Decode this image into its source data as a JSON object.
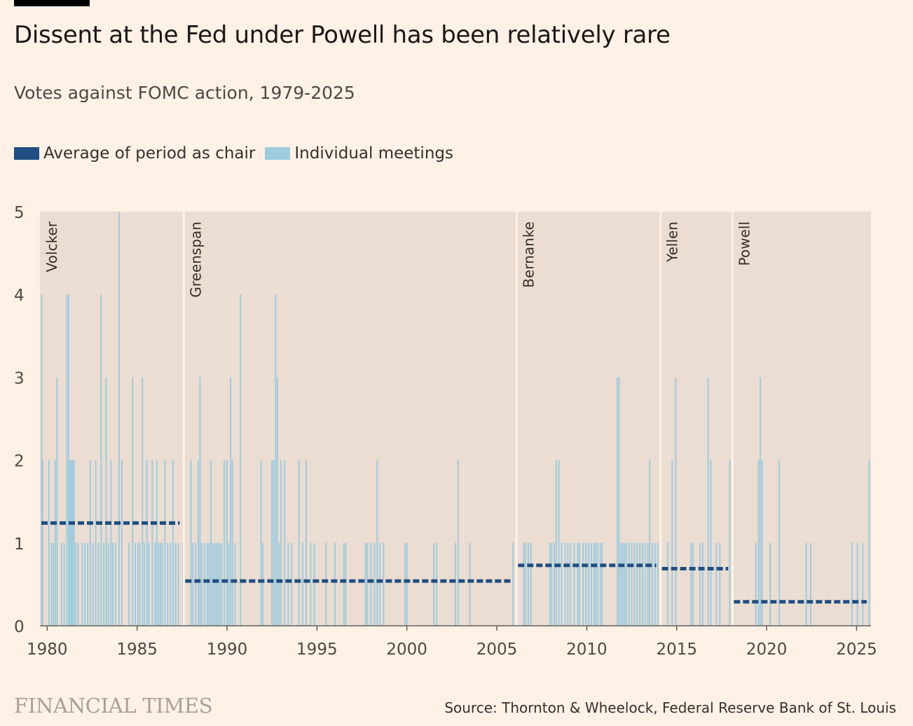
{
  "header": {
    "title": "Dissent at the Fed under Powell has been relatively rare",
    "subtitle": "Votes against FOMC action, 1979-2025"
  },
  "legend": {
    "average_label": "Average of period as chair",
    "meetings_label": "Individual meetings"
  },
  "footer": {
    "logo": "FINANCIAL TIMES",
    "source": "Source: Thornton & Wheelock, Federal Reserve Bank of St. Louis"
  },
  "colors": {
    "background": "#fff1e5",
    "panel": "#ebddd1",
    "average": "#1f4e82",
    "meetings": "#9fcbdf",
    "divider": "#fff1e5"
  },
  "chart_data": {
    "type": "bar",
    "title": "Dissent at the Fed under Powell has been relatively rare",
    "subtitle": "Votes against FOMC action, 1979-2025",
    "xlim": [
      1979.6,
      2025.8
    ],
    "ylim": [
      0,
      5
    ],
    "x_ticks": [
      1980,
      1985,
      1990,
      1995,
      2000,
      2005,
      2010,
      2015,
      2020,
      2025
    ],
    "y_ticks": [
      0,
      1,
      2,
      3,
      4,
      5
    ],
    "chairs": [
      {
        "name": "Volcker",
        "start": 1979.6,
        "end": 1987.6,
        "average": 1.24
      },
      {
        "name": "Greenspan",
        "start": 1987.6,
        "end": 2006.1,
        "average": 0.54
      },
      {
        "name": "Bernanke",
        "start": 2006.1,
        "end": 2014.1,
        "average": 0.73
      },
      {
        "name": "Yellen",
        "start": 2014.1,
        "end": 2018.1,
        "average": 0.69
      },
      {
        "name": "Powell",
        "start": 2018.1,
        "end": 2025.8,
        "average": 0.29
      }
    ],
    "meetings": [
      {
        "x": 1979.7,
        "y": 4
      },
      {
        "x": 1979.75,
        "y": 2
      },
      {
        "x": 1980.1,
        "y": 2
      },
      {
        "x": 1980.25,
        "y": 1
      },
      {
        "x": 1980.35,
        "y": 1
      },
      {
        "x": 1980.45,
        "y": 2
      },
      {
        "x": 1980.55,
        "y": 3
      },
      {
        "x": 1980.8,
        "y": 1
      },
      {
        "x": 1980.95,
        "y": 1
      },
      {
        "x": 1981.1,
        "y": 4
      },
      {
        "x": 1981.2,
        "y": 4
      },
      {
        "x": 1981.27,
        "y": 2
      },
      {
        "x": 1981.35,
        "y": 2
      },
      {
        "x": 1981.42,
        "y": 2
      },
      {
        "x": 1981.5,
        "y": 2
      },
      {
        "x": 1981.6,
        "y": 1
      },
      {
        "x": 1981.72,
        "y": 1
      },
      {
        "x": 1981.95,
        "y": 1
      },
      {
        "x": 1982.1,
        "y": 1
      },
      {
        "x": 1982.25,
        "y": 1
      },
      {
        "x": 1982.4,
        "y": 2
      },
      {
        "x": 1982.55,
        "y": 1
      },
      {
        "x": 1982.7,
        "y": 2
      },
      {
        "x": 1982.85,
        "y": 1
      },
      {
        "x": 1983.0,
        "y": 4
      },
      {
        "x": 1983.15,
        "y": 1
      },
      {
        "x": 1983.28,
        "y": 3
      },
      {
        "x": 1983.4,
        "y": 1
      },
      {
        "x": 1983.55,
        "y": 2
      },
      {
        "x": 1983.65,
        "y": 1
      },
      {
        "x": 1983.8,
        "y": 1
      },
      {
        "x": 1984.0,
        "y": 5
      },
      {
        "x": 1984.15,
        "y": 2
      },
      {
        "x": 1984.55,
        "y": 1
      },
      {
        "x": 1984.75,
        "y": 3
      },
      {
        "x": 1984.9,
        "y": 1
      },
      {
        "x": 1985.05,
        "y": 1
      },
      {
        "x": 1985.15,
        "y": 1
      },
      {
        "x": 1985.3,
        "y": 3
      },
      {
        "x": 1985.4,
        "y": 1
      },
      {
        "x": 1985.55,
        "y": 2
      },
      {
        "x": 1985.65,
        "y": 1
      },
      {
        "x": 1985.85,
        "y": 2
      },
      {
        "x": 1986.0,
        "y": 1
      },
      {
        "x": 1986.1,
        "y": 2
      },
      {
        "x": 1986.2,
        "y": 1
      },
      {
        "x": 1986.3,
        "y": 1
      },
      {
        "x": 1986.4,
        "y": 1
      },
      {
        "x": 1986.55,
        "y": 2
      },
      {
        "x": 1986.7,
        "y": 1
      },
      {
        "x": 1986.85,
        "y": 1
      },
      {
        "x": 1987.0,
        "y": 2
      },
      {
        "x": 1987.15,
        "y": 1
      },
      {
        "x": 1987.3,
        "y": 1
      },
      {
        "x": 1987.55,
        "y": 1
      },
      {
        "x": 1988.0,
        "y": 2
      },
      {
        "x": 1988.1,
        "y": 1
      },
      {
        "x": 1988.25,
        "y": 1
      },
      {
        "x": 1988.4,
        "y": 2
      },
      {
        "x": 1988.5,
        "y": 3
      },
      {
        "x": 1988.6,
        "y": 1
      },
      {
        "x": 1988.75,
        "y": 1
      },
      {
        "x": 1988.9,
        "y": 1
      },
      {
        "x": 1989.0,
        "y": 1
      },
      {
        "x": 1989.1,
        "y": 2
      },
      {
        "x": 1989.2,
        "y": 1
      },
      {
        "x": 1989.3,
        "y": 1
      },
      {
        "x": 1989.4,
        "y": 1
      },
      {
        "x": 1989.5,
        "y": 1
      },
      {
        "x": 1989.6,
        "y": 1
      },
      {
        "x": 1989.7,
        "y": 1
      },
      {
        "x": 1989.85,
        "y": 2
      },
      {
        "x": 1990.0,
        "y": 2
      },
      {
        "x": 1990.1,
        "y": 1
      },
      {
        "x": 1990.2,
        "y": 3
      },
      {
        "x": 1990.3,
        "y": 2
      },
      {
        "x": 1990.45,
        "y": 1
      },
      {
        "x": 1990.75,
        "y": 4
      },
      {
        "x": 1991.9,
        "y": 2
      },
      {
        "x": 1992.0,
        "y": 1
      },
      {
        "x": 1992.5,
        "y": 2
      },
      {
        "x": 1992.6,
        "y": 2
      },
      {
        "x": 1992.7,
        "y": 4
      },
      {
        "x": 1992.8,
        "y": 3
      },
      {
        "x": 1992.9,
        "y": 1
      },
      {
        "x": 1993.0,
        "y": 2
      },
      {
        "x": 1993.2,
        "y": 2
      },
      {
        "x": 1993.4,
        "y": 1
      },
      {
        "x": 1993.6,
        "y": 1
      },
      {
        "x": 1994.0,
        "y": 2
      },
      {
        "x": 1994.2,
        "y": 1
      },
      {
        "x": 1994.4,
        "y": 2
      },
      {
        "x": 1994.65,
        "y": 1
      },
      {
        "x": 1994.85,
        "y": 1
      },
      {
        "x": 1995.5,
        "y": 1
      },
      {
        "x": 1996.0,
        "y": 1
      },
      {
        "x": 1996.5,
        "y": 1
      },
      {
        "x": 1996.6,
        "y": 1
      },
      {
        "x": 1997.7,
        "y": 1
      },
      {
        "x": 1997.8,
        "y": 1
      },
      {
        "x": 1998.0,
        "y": 1
      },
      {
        "x": 1998.2,
        "y": 1
      },
      {
        "x": 1998.35,
        "y": 2
      },
      {
        "x": 1998.5,
        "y": 1
      },
      {
        "x": 1998.7,
        "y": 1
      },
      {
        "x": 1999.9,
        "y": 1
      },
      {
        "x": 2000.0,
        "y": 1
      },
      {
        "x": 2001.5,
        "y": 1
      },
      {
        "x": 2001.65,
        "y": 1
      },
      {
        "x": 2002.7,
        "y": 1
      },
      {
        "x": 2002.85,
        "y": 2
      },
      {
        "x": 2003.5,
        "y": 1
      },
      {
        "x": 2005.9,
        "y": 1
      },
      {
        "x": 2006.5,
        "y": 1
      },
      {
        "x": 2006.6,
        "y": 1
      },
      {
        "x": 2006.75,
        "y": 1
      },
      {
        "x": 2006.9,
        "y": 1
      },
      {
        "x": 2007.95,
        "y": 1
      },
      {
        "x": 2008.05,
        "y": 1
      },
      {
        "x": 2008.2,
        "y": 1
      },
      {
        "x": 2008.3,
        "y": 2
      },
      {
        "x": 2008.45,
        "y": 2
      },
      {
        "x": 2008.6,
        "y": 1
      },
      {
        "x": 2008.8,
        "y": 1
      },
      {
        "x": 2008.95,
        "y": 1
      },
      {
        "x": 2009.1,
        "y": 1
      },
      {
        "x": 2009.3,
        "y": 1
      },
      {
        "x": 2009.5,
        "y": 1
      },
      {
        "x": 2009.6,
        "y": 1
      },
      {
        "x": 2009.8,
        "y": 1
      },
      {
        "x": 2009.95,
        "y": 1
      },
      {
        "x": 2010.1,
        "y": 1
      },
      {
        "x": 2010.25,
        "y": 1
      },
      {
        "x": 2010.4,
        "y": 1
      },
      {
        "x": 2010.5,
        "y": 1
      },
      {
        "x": 2010.6,
        "y": 1
      },
      {
        "x": 2010.75,
        "y": 1
      },
      {
        "x": 2010.85,
        "y": 1
      },
      {
        "x": 2011.7,
        "y": 3
      },
      {
        "x": 2011.8,
        "y": 3
      },
      {
        "x": 2011.9,
        "y": 1
      },
      {
        "x": 2012.0,
        "y": 1
      },
      {
        "x": 2012.1,
        "y": 1
      },
      {
        "x": 2012.2,
        "y": 1
      },
      {
        "x": 2012.35,
        "y": 1
      },
      {
        "x": 2012.5,
        "y": 1
      },
      {
        "x": 2012.65,
        "y": 1
      },
      {
        "x": 2012.8,
        "y": 1
      },
      {
        "x": 2012.95,
        "y": 1
      },
      {
        "x": 2013.1,
        "y": 1
      },
      {
        "x": 2013.25,
        "y": 1
      },
      {
        "x": 2013.4,
        "y": 1
      },
      {
        "x": 2013.5,
        "y": 2
      },
      {
        "x": 2013.65,
        "y": 1
      },
      {
        "x": 2013.8,
        "y": 1
      },
      {
        "x": 2013.95,
        "y": 1
      },
      {
        "x": 2014.5,
        "y": 1
      },
      {
        "x": 2014.75,
        "y": 2
      },
      {
        "x": 2014.95,
        "y": 3
      },
      {
        "x": 2015.8,
        "y": 1
      },
      {
        "x": 2015.9,
        "y": 1
      },
      {
        "x": 2016.3,
        "y": 1
      },
      {
        "x": 2016.45,
        "y": 1
      },
      {
        "x": 2016.75,
        "y": 3
      },
      {
        "x": 2016.9,
        "y": 2
      },
      {
        "x": 2017.2,
        "y": 1
      },
      {
        "x": 2017.4,
        "y": 1
      },
      {
        "x": 2017.95,
        "y": 2
      },
      {
        "x": 2019.4,
        "y": 1
      },
      {
        "x": 2019.55,
        "y": 2
      },
      {
        "x": 2019.65,
        "y": 3
      },
      {
        "x": 2019.75,
        "y": 2
      },
      {
        "x": 2020.2,
        "y": 1
      },
      {
        "x": 2020.7,
        "y": 2
      },
      {
        "x": 2022.2,
        "y": 1
      },
      {
        "x": 2022.45,
        "y": 1
      },
      {
        "x": 2024.75,
        "y": 1
      },
      {
        "x": 2025.05,
        "y": 1
      },
      {
        "x": 2025.35,
        "y": 1
      },
      {
        "x": 2025.7,
        "y": 2
      }
    ]
  }
}
